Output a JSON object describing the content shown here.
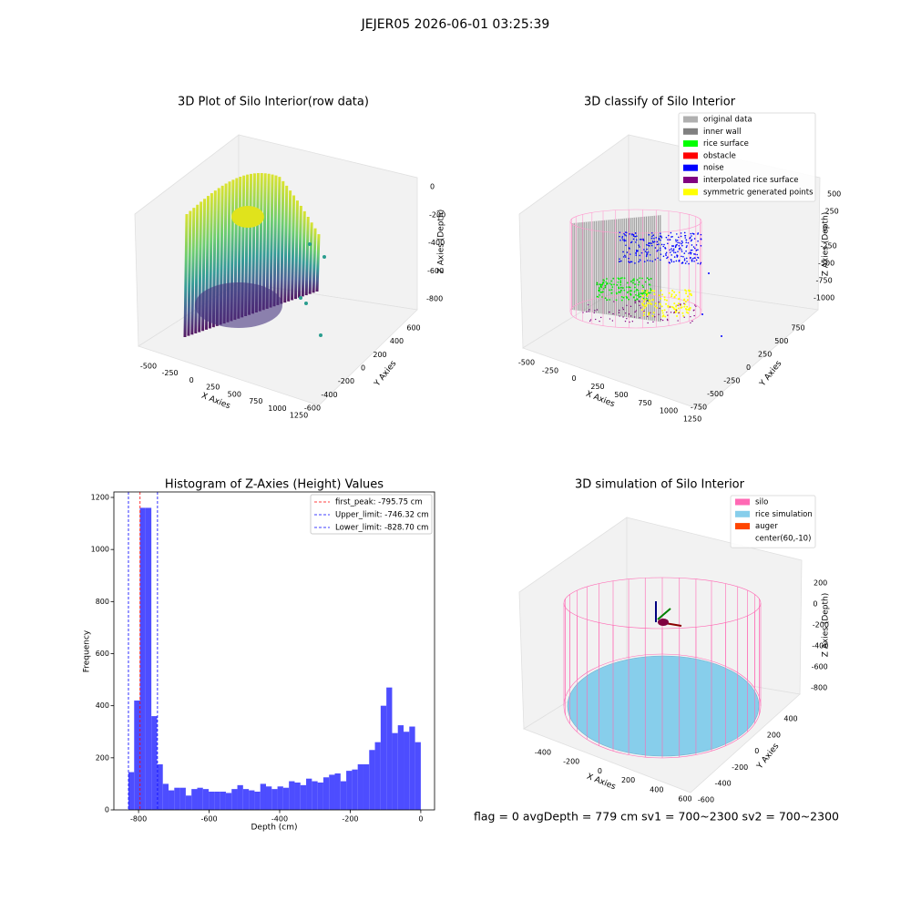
{
  "title": "JEJER05 2026-06-01 03:25:39",
  "status": "flag = 0     avgDepth = 779 cm  sv1 = 700~2300  sv2 = 700~2300",
  "chart_data": [
    {
      "type": "scatter3d",
      "title": "3D Plot of Silo Interior(row data)",
      "xlabel": "X Axies",
      "ylabel": "Y Axies",
      "zlabel": "Z Axies (Depth)",
      "xticks": [
        -500,
        -250,
        0,
        250,
        500,
        750,
        1000,
        1250
      ],
      "yticks": [
        -600,
        -400,
        -200,
        0,
        200,
        400,
        600
      ],
      "zticks": [
        0,
        -200,
        -400,
        -600,
        -800
      ]
    },
    {
      "type": "scatter3d",
      "title": "3D classify of Silo Interior",
      "xlabel": "X Axies",
      "ylabel": "Y Axies",
      "zlabel": "Z Axies (Depth)",
      "xticks": [
        -500,
        -250,
        0,
        250,
        500,
        750,
        1000,
        1250
      ],
      "yticks": [
        -750,
        -500,
        -250,
        0,
        250,
        500,
        750
      ],
      "zticks": [
        500,
        250,
        0,
        -250,
        -500,
        -750,
        -1000
      ],
      "legend": [
        {
          "name": "original data",
          "color": "#b0b0b0"
        },
        {
          "name": "inner wall",
          "color": "#808080"
        },
        {
          "name": "rice surface",
          "color": "#00ff00"
        },
        {
          "name": "obstacle",
          "color": "#ff0000"
        },
        {
          "name": "noise",
          "color": "#0000ff"
        },
        {
          "name": "interpolated rice surface",
          "color": "#800080"
        },
        {
          "name": "symmetric generated points",
          "color": "#ffff00"
        }
      ]
    },
    {
      "type": "histogram",
      "title": "Histogram of Z-Axies (Height) Values",
      "xlabel": "Depth (cm)",
      "ylabel": "Frequency",
      "color": "#4d4dff",
      "bins": [
        -828.75,
        -812.5,
        -796.25,
        -780,
        -763.75,
        -747.5,
        -731.25,
        -715,
        -698.75,
        -682.5,
        -666.25,
        -650,
        -633.75,
        -617.5,
        -601.25,
        -585,
        -568.75,
        -552.5,
        -536.25,
        -520,
        -503.75,
        -487.5,
        -471.25,
        -455,
        -438.75,
        -422.5,
        -406.25,
        -390,
        -373.75,
        -357.5,
        -341.25,
        -325,
        -308.75,
        -292.5,
        -276.25,
        -260,
        -243.75,
        -227.5,
        -211.25,
        -195,
        -178.75,
        -162.5,
        -146.25,
        -130,
        -113.75,
        -97.5,
        -81.25,
        -65,
        -48.75,
        -32.5,
        -16.25,
        0
      ],
      "counts": [
        145,
        420,
        1160,
        1160,
        360,
        175,
        100,
        75,
        85,
        85,
        55,
        80,
        85,
        80,
        70,
        70,
        70,
        65,
        80,
        95,
        80,
        75,
        70,
        100,
        90,
        80,
        90,
        85,
        110,
        105,
        95,
        120,
        110,
        105,
        125,
        135,
        140,
        110,
        150,
        155,
        175,
        175,
        230,
        260,
        400,
        470,
        295,
        325,
        300,
        320,
        260
      ],
      "xlim": [
        -870,
        39
      ],
      "ylim": [
        0,
        1221
      ],
      "xticks": [
        -800,
        -600,
        -400,
        -200,
        0
      ],
      "yticks": [
        0,
        200,
        400,
        600,
        800,
        1000,
        1200
      ],
      "lines": [
        {
          "name": "first_peak: -795.75 cm",
          "value": -795.75,
          "color": "#ff0000"
        },
        {
          "name": "Upper_limit: -746.32 cm",
          "value": -746.32,
          "color": "#0000ff"
        },
        {
          "name": "Lower_limit: -828.70 cm",
          "value": -828.7,
          "color": "#0000ff"
        }
      ]
    },
    {
      "type": "cylinder3d",
      "title": "3D simulation of Silo Interior",
      "xlabel": "X Axies",
      "ylabel": "Y Axies",
      "zlabel": "Z Axies (Depth)",
      "xticks": [
        -400,
        -200,
        0,
        200,
        400,
        600
      ],
      "yticks": [
        -600,
        -400,
        -200,
        0,
        200,
        400
      ],
      "zticks": [
        200,
        0,
        -200,
        -400,
        -600,
        -800
      ],
      "legend": [
        {
          "name": "silo",
          "color": "#ff69b4"
        },
        {
          "name": "rice simulation",
          "color": "#87ceeb"
        },
        {
          "name": "auger",
          "color": "#ff4500"
        },
        {
          "name": "center(60,-10)"
        }
      ]
    }
  ]
}
